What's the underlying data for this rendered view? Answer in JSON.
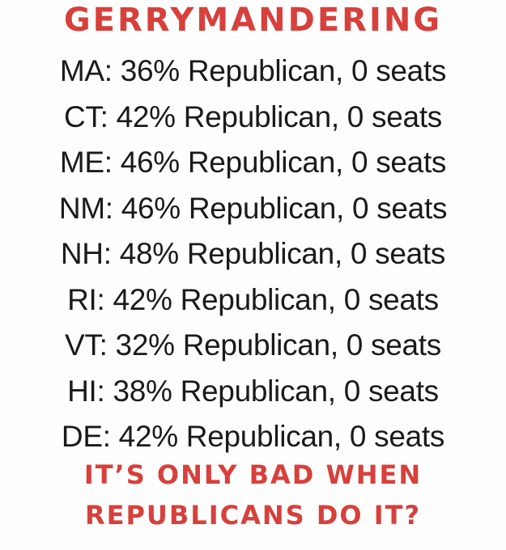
{
  "title": "GERRYMANDERING",
  "rows": [
    "MA: 36% Republican, 0 seats",
    "CT: 42% Republican, 0 seats",
    "ME: 46% Republican, 0 seats",
    "NM: 46% Republican, 0 seats",
    "NH: 48% Republican, 0 seats",
    "RI: 42% Republican, 0 seats",
    "VT: 32% Republican, 0 seats",
    "HI: 38% Republican, 0 seats",
    "DE: 42% Republican, 0 seats"
  ],
  "tagline": {
    "line1": "IT’S ONLY BAD WHEN",
    "line2": "REPUBLICANS DO IT?"
  },
  "colors": {
    "accent": "#d8403b",
    "text": "#1a1a1a",
    "background": "#fefefe"
  }
}
